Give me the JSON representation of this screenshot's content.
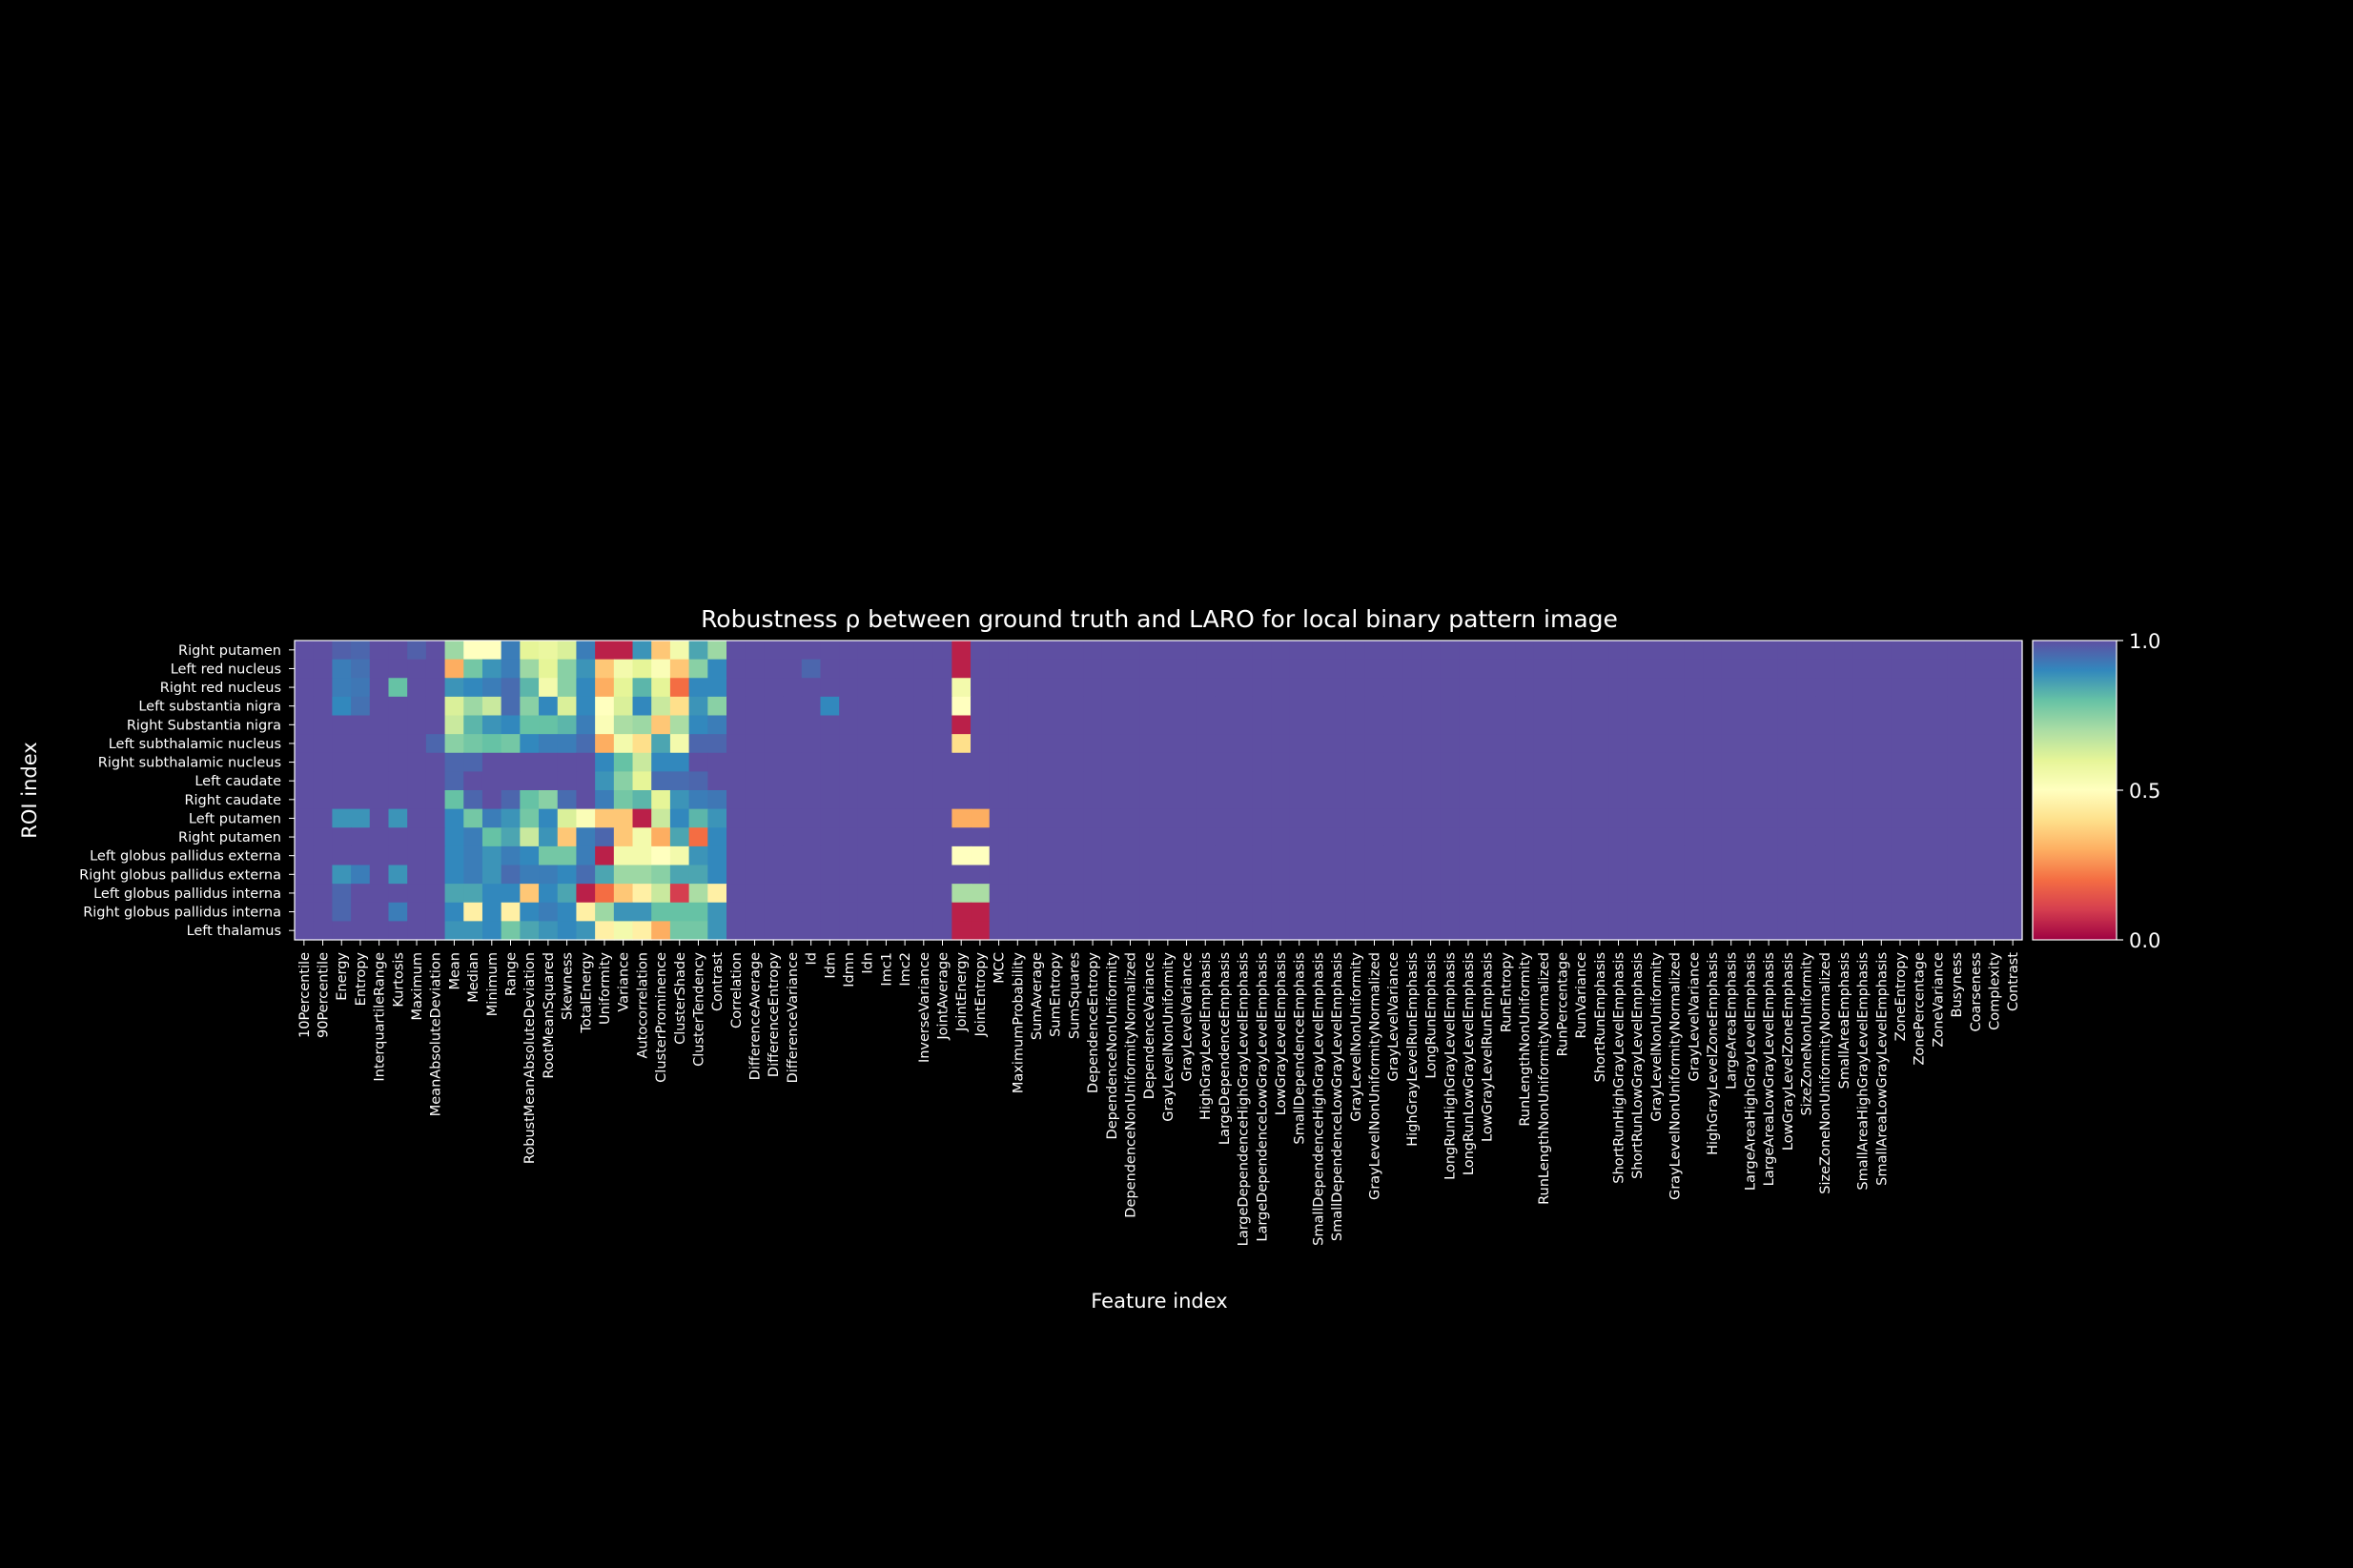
{
  "chart_data": {
    "type": "heatmap",
    "title": "Robustness ρ between ground truth and LARO for local binary pattern image",
    "xlabel": "Feature index",
    "ylabel": "ROI index",
    "colormap": "Spectral",
    "vmin": 0.0,
    "vmax": 1.0,
    "colorbar_ticks": [
      "0.0",
      "0.5",
      "1.0"
    ],
    "y_labels": [
      "Right putamen",
      "Left red nucleus",
      "Right red nucleus",
      "Left substantia nigra",
      "Right Substantia nigra",
      "Left subthalamic nucleus",
      "Right subthalamic nucleus",
      "Left caudate",
      "Right caudate",
      "Left putamen",
      "Right putamen",
      "Left globus pallidus externa",
      "Right globus pallidus externa",
      "Left globus pallidus interna",
      "Right globus pallidus interna",
      "Left thalamus"
    ],
    "x_labels": [
      "10Percentile",
      "90Percentile",
      "Energy",
      "Entropy",
      "InterquartileRange",
      "Kurtosis",
      "Maximum",
      "MeanAbsoluteDeviation",
      "Mean",
      "Median",
      "Minimum",
      "Range",
      "RobustMeanAbsoluteDeviation",
      "RootMeanSquared",
      "Skewness",
      "TotalEnergy",
      "Uniformity",
      "Variance",
      "Autocorrelation",
      "ClusterProminence",
      "ClusterShade",
      "ClusterTendency",
      "Contrast",
      "Correlation",
      "DifferenceAverage",
      "DifferenceEntropy",
      "DifferenceVariance",
      "Id",
      "Idm",
      "Idmn",
      "Idn",
      "Imc1",
      "Imc2",
      "InverseVariance",
      "JointAverage",
      "JointEnergy",
      "JointEntropy",
      "MCC",
      "MaximumProbability",
      "SumAverage",
      "SumEntropy",
      "SumSquares",
      "DependenceEntropy",
      "DependenceNonUniformity",
      "DependenceNonUniformityNormalized",
      "DependenceVariance",
      "GrayLevelNonUniformity",
      "GrayLevelVariance",
      "HighGrayLevelEmphasis",
      "LargeDependenceEmphasis",
      "LargeDependenceHighGrayLevelEmphasis",
      "LargeDependenceLowGrayLevelEmphasis",
      "LowGrayLevelEmphasis",
      "SmallDependenceEmphasis",
      "SmallDependenceHighGrayLevelEmphasis",
      "SmallDependenceLowGrayLevelEmphasis",
      "GrayLevelNonUniformity",
      "GrayLevelNonUniformityNormalized",
      "GrayLevelVariance",
      "HighGrayLevelRunEmphasis",
      "LongRunEmphasis",
      "LongRunHighGrayLevelEmphasis",
      "LongRunLowGrayLevelEmphasis",
      "LowGrayLevelRunEmphasis",
      "RunEntropy",
      "RunLengthNonUniformity",
      "RunLengthNonUniformityNormalized",
      "RunPercentage",
      "RunVariance",
      "ShortRunEmphasis",
      "ShortRunHighGrayLevelEmphasis",
      "ShortRunLowGrayLevelEmphasis",
      "GrayLevelNonUniformity",
      "GrayLevelNonUniformityNormalized",
      "GrayLevelVariance",
      "HighGrayLevelZoneEmphasis",
      "LargeAreaEmphasis",
      "LargeAreaHighGrayLevelEmphasis",
      "LargeAreaLowGrayLevelEmphasis",
      "LowGrayLevelZoneEmphasis",
      "SizeZoneNonUniformity",
      "SizeZoneNonUniformityNormalized",
      "SmallAreaEmphasis",
      "SmallAreaHighGrayLevelEmphasis",
      "SmallAreaLowGrayLevelEmphasis",
      "ZoneEntropy",
      "ZonePercentage",
      "ZoneVariance",
      "Busyness",
      "Coarseness",
      "Complexity",
      "Contrast"
    ],
    "default_value": 1.0,
    "overrides": [
      [
        0,
        2,
        0.97
      ],
      [
        0,
        3,
        0.96
      ],
      [
        0,
        6,
        0.97
      ],
      [
        0,
        8,
        0.72
      ],
      [
        0,
        9,
        0.5
      ],
      [
        0,
        10,
        0.5
      ],
      [
        0,
        11,
        0.92
      ],
      [
        0,
        12,
        0.6
      ],
      [
        0,
        13,
        0.58
      ],
      [
        0,
        14,
        0.62
      ],
      [
        0,
        15,
        0.92
      ],
      [
        0,
        16,
        0.05
      ],
      [
        0,
        17,
        0.05
      ],
      [
        0,
        18,
        0.88
      ],
      [
        0,
        19,
        0.35
      ],
      [
        0,
        20,
        0.55
      ],
      [
        0,
        21,
        0.85
      ],
      [
        0,
        22,
        0.72
      ],
      [
        0,
        35,
        0.05
      ],
      [
        1,
        2,
        0.92
      ],
      [
        1,
        3,
        0.94
      ],
      [
        1,
        8,
        0.3
      ],
      [
        1,
        9,
        0.78
      ],
      [
        1,
        10,
        0.88
      ],
      [
        1,
        11,
        0.92
      ],
      [
        1,
        12,
        0.72
      ],
      [
        1,
        13,
        0.6
      ],
      [
        1,
        14,
        0.75
      ],
      [
        1,
        15,
        0.88
      ],
      [
        1,
        16,
        0.35
      ],
      [
        1,
        17,
        0.55
      ],
      [
        1,
        18,
        0.6
      ],
      [
        1,
        19,
        0.52
      ],
      [
        1,
        20,
        0.35
      ],
      [
        1,
        21,
        0.75
      ],
      [
        1,
        22,
        0.9
      ],
      [
        1,
        27,
        0.96
      ],
      [
        1,
        35,
        0.05
      ],
      [
        2,
        2,
        0.92
      ],
      [
        2,
        3,
        0.93
      ],
      [
        2,
        5,
        0.8
      ],
      [
        2,
        8,
        0.88
      ],
      [
        2,
        9,
        0.9
      ],
      [
        2,
        10,
        0.92
      ],
      [
        2,
        11,
        0.95
      ],
      [
        2,
        12,
        0.82
      ],
      [
        2,
        13,
        0.55
      ],
      [
        2,
        14,
        0.75
      ],
      [
        2,
        15,
        0.9
      ],
      [
        2,
        16,
        0.3
      ],
      [
        2,
        17,
        0.6
      ],
      [
        2,
        18,
        0.82
      ],
      [
        2,
        19,
        0.6
      ],
      [
        2,
        20,
        0.2
      ],
      [
        2,
        21,
        0.9
      ],
      [
        2,
        22,
        0.9
      ],
      [
        2,
        35,
        0.55
      ],
      [
        3,
        2,
        0.9
      ],
      [
        3,
        3,
        0.94
      ],
      [
        3,
        8,
        0.62
      ],
      [
        3,
        9,
        0.72
      ],
      [
        3,
        10,
        0.65
      ],
      [
        3,
        11,
        0.95
      ],
      [
        3,
        12,
        0.75
      ],
      [
        3,
        13,
        0.9
      ],
      [
        3,
        14,
        0.62
      ],
      [
        3,
        15,
        0.9
      ],
      [
        3,
        16,
        0.5
      ],
      [
        3,
        17,
        0.62
      ],
      [
        3,
        18,
        0.9
      ],
      [
        3,
        19,
        0.65
      ],
      [
        3,
        20,
        0.4
      ],
      [
        3,
        21,
        0.88
      ],
      [
        3,
        22,
        0.75
      ],
      [
        3,
        28,
        0.9
      ],
      [
        3,
        35,
        0.5
      ],
      [
        4,
        8,
        0.65
      ],
      [
        4,
        9,
        0.82
      ],
      [
        4,
        10,
        0.88
      ],
      [
        4,
        11,
        0.9
      ],
      [
        4,
        12,
        0.8
      ],
      [
        4,
        13,
        0.8
      ],
      [
        4,
        14,
        0.82
      ],
      [
        4,
        15,
        0.92
      ],
      [
        4,
        16,
        0.52
      ],
      [
        4,
        17,
        0.7
      ],
      [
        4,
        18,
        0.72
      ],
      [
        4,
        19,
        0.35
      ],
      [
        4,
        20,
        0.7
      ],
      [
        4,
        21,
        0.9
      ],
      [
        4,
        22,
        0.92
      ],
      [
        4,
        35,
        0.05
      ],
      [
        5,
        7,
        0.96
      ],
      [
        5,
        8,
        0.75
      ],
      [
        5,
        9,
        0.78
      ],
      [
        5,
        10,
        0.8
      ],
      [
        5,
        11,
        0.78
      ],
      [
        5,
        12,
        0.9
      ],
      [
        5,
        13,
        0.92
      ],
      [
        5,
        14,
        0.92
      ],
      [
        5,
        15,
        0.95
      ],
      [
        5,
        16,
        0.3
      ],
      [
        5,
        17,
        0.55
      ],
      [
        5,
        18,
        0.4
      ],
      [
        5,
        19,
        0.85
      ],
      [
        5,
        20,
        0.55
      ],
      [
        5,
        21,
        0.96
      ],
      [
        5,
        22,
        0.96
      ],
      [
        5,
        35,
        0.4
      ],
      [
        6,
        8,
        0.96
      ],
      [
        6,
        9,
        0.96
      ],
      [
        6,
        16,
        0.9
      ],
      [
        6,
        17,
        0.8
      ],
      [
        6,
        18,
        0.65
      ],
      [
        6,
        19,
        0.9
      ],
      [
        6,
        20,
        0.9
      ],
      [
        7,
        8,
        0.96
      ],
      [
        7,
        16,
        0.88
      ],
      [
        7,
        17,
        0.75
      ],
      [
        7,
        18,
        0.6
      ],
      [
        7,
        19,
        0.95
      ],
      [
        7,
        20,
        0.95
      ],
      [
        7,
        21,
        0.96
      ],
      [
        8,
        8,
        0.8
      ],
      [
        8,
        9,
        0.96
      ],
      [
        8,
        11,
        0.96
      ],
      [
        8,
        12,
        0.8
      ],
      [
        8,
        13,
        0.75
      ],
      [
        8,
        14,
        0.95
      ],
      [
        8,
        16,
        0.92
      ],
      [
        8,
        17,
        0.78
      ],
      [
        8,
        18,
        0.82
      ],
      [
        8,
        19,
        0.6
      ],
      [
        8,
        20,
        0.88
      ],
      [
        8,
        21,
        0.92
      ],
      [
        8,
        22,
        0.93
      ],
      [
        9,
        2,
        0.88
      ],
      [
        9,
        3,
        0.88
      ],
      [
        9,
        5,
        0.88
      ],
      [
        9,
        8,
        0.9
      ],
      [
        9,
        9,
        0.78
      ],
      [
        9,
        10,
        0.92
      ],
      [
        9,
        11,
        0.88
      ],
      [
        9,
        12,
        0.78
      ],
      [
        9,
        13,
        0.9
      ],
      [
        9,
        14,
        0.62
      ],
      [
        9,
        15,
        0.52
      ],
      [
        9,
        16,
        0.35
      ],
      [
        9,
        17,
        0.35
      ],
      [
        9,
        18,
        0.05
      ],
      [
        9,
        19,
        0.65
      ],
      [
        9,
        20,
        0.9
      ],
      [
        9,
        21,
        0.82
      ],
      [
        9,
        22,
        0.88
      ],
      [
        9,
        35,
        0.3
      ],
      [
        9,
        36,
        0.3
      ],
      [
        10,
        8,
        0.9
      ],
      [
        10,
        9,
        0.92
      ],
      [
        10,
        10,
        0.8
      ],
      [
        10,
        11,
        0.85
      ],
      [
        10,
        12,
        0.65
      ],
      [
        10,
        13,
        0.88
      ],
      [
        10,
        14,
        0.35
      ],
      [
        10,
        15,
        0.92
      ],
      [
        10,
        16,
        0.96
      ],
      [
        10,
        17,
        0.35
      ],
      [
        10,
        18,
        0.55
      ],
      [
        10,
        19,
        0.3
      ],
      [
        10,
        20,
        0.85
      ],
      [
        10,
        21,
        0.2
      ],
      [
        10,
        22,
        0.9
      ],
      [
        11,
        8,
        0.9
      ],
      [
        11,
        9,
        0.92
      ],
      [
        11,
        10,
        0.88
      ],
      [
        11,
        11,
        0.92
      ],
      [
        11,
        12,
        0.9
      ],
      [
        11,
        13,
        0.78
      ],
      [
        11,
        14,
        0.78
      ],
      [
        11,
        15,
        0.92
      ],
      [
        11,
        16,
        0.05
      ],
      [
        11,
        17,
        0.55
      ],
      [
        11,
        18,
        0.55
      ],
      [
        11,
        19,
        0.5
      ],
      [
        11,
        20,
        0.55
      ],
      [
        11,
        21,
        0.88
      ],
      [
        11,
        22,
        0.9
      ],
      [
        11,
        35,
        0.5
      ],
      [
        11,
        36,
        0.5
      ],
      [
        12,
        2,
        0.88
      ],
      [
        12,
        3,
        0.92
      ],
      [
        12,
        5,
        0.88
      ],
      [
        12,
        8,
        0.9
      ],
      [
        12,
        9,
        0.92
      ],
      [
        12,
        10,
        0.88
      ],
      [
        12,
        11,
        0.95
      ],
      [
        12,
        12,
        0.92
      ],
      [
        12,
        13,
        0.92
      ],
      [
        12,
        14,
        0.9
      ],
      [
        12,
        15,
        0.95
      ],
      [
        12,
        16,
        0.85
      ],
      [
        12,
        17,
        0.72
      ],
      [
        12,
        18,
        0.72
      ],
      [
        12,
        19,
        0.75
      ],
      [
        12,
        20,
        0.85
      ],
      [
        12,
        21,
        0.85
      ],
      [
        12,
        22,
        0.9
      ],
      [
        13,
        2,
        0.96
      ],
      [
        13,
        8,
        0.85
      ],
      [
        13,
        9,
        0.85
      ],
      [
        13,
        10,
        0.9
      ],
      [
        13,
        11,
        0.9
      ],
      [
        13,
        12,
        0.35
      ],
      [
        13,
        13,
        0.9
      ],
      [
        13,
        14,
        0.85
      ],
      [
        13,
        15,
        0.05
      ],
      [
        13,
        16,
        0.2
      ],
      [
        13,
        17,
        0.35
      ],
      [
        13,
        18,
        0.45
      ],
      [
        13,
        19,
        0.65
      ],
      [
        13,
        20,
        0.1
      ],
      [
        13,
        21,
        0.7
      ],
      [
        13,
        22,
        0.45
      ],
      [
        13,
        35,
        0.7
      ],
      [
        13,
        36,
        0.7
      ],
      [
        14,
        2,
        0.96
      ],
      [
        14,
        5,
        0.92
      ],
      [
        14,
        8,
        0.9
      ],
      [
        14,
        9,
        0.45
      ],
      [
        14,
        10,
        0.9
      ],
      [
        14,
        11,
        0.45
      ],
      [
        14,
        12,
        0.9
      ],
      [
        14,
        13,
        0.92
      ],
      [
        14,
        14,
        0.9
      ],
      [
        14,
        15,
        0.45
      ],
      [
        14,
        16,
        0.72
      ],
      [
        14,
        17,
        0.88
      ],
      [
        14,
        18,
        0.88
      ],
      [
        14,
        19,
        0.8
      ],
      [
        14,
        20,
        0.8
      ],
      [
        14,
        21,
        0.8
      ],
      [
        14,
        22,
        0.88
      ],
      [
        14,
        35,
        0.05
      ],
      [
        14,
        36,
        0.05
      ],
      [
        15,
        8,
        0.88
      ],
      [
        15,
        9,
        0.88
      ],
      [
        15,
        10,
        0.9
      ],
      [
        15,
        11,
        0.78
      ],
      [
        15,
        12,
        0.85
      ],
      [
        15,
        13,
        0.88
      ],
      [
        15,
        14,
        0.9
      ],
      [
        15,
        15,
        0.88
      ],
      [
        15,
        16,
        0.45
      ],
      [
        15,
        17,
        0.55
      ],
      [
        15,
        18,
        0.45
      ],
      [
        15,
        19,
        0.3
      ],
      [
        15,
        20,
        0.78
      ],
      [
        15,
        21,
        0.78
      ],
      [
        15,
        22,
        0.88
      ],
      [
        15,
        35,
        0.05
      ],
      [
        15,
        36,
        0.05
      ]
    ]
  }
}
